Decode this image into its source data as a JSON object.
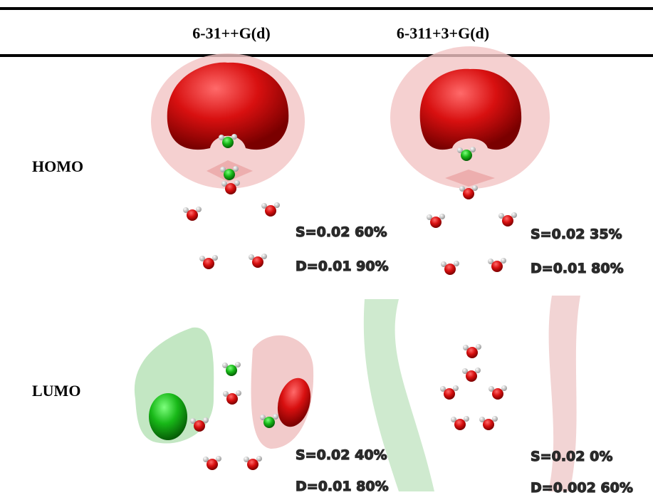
{
  "table": {
    "columns": [
      "6-31++G(d)",
      "6-311+3+G(d)"
    ],
    "rows": [
      {
        "label": "HOMO",
        "cells": [
          {
            "s": "S=0.02 60%",
            "d": "D=0.01 90%"
          },
          {
            "s": "S=0.02 35%",
            "d": "D=0.01 80%"
          }
        ]
      },
      {
        "label": "LUMO",
        "cells": [
          {
            "s": "S=0.02 40%",
            "d": "D=0.01 80%"
          },
          {
            "s": "S=0.02 0%",
            "d": "D=0.002 60%"
          }
        ]
      }
    ]
  }
}
